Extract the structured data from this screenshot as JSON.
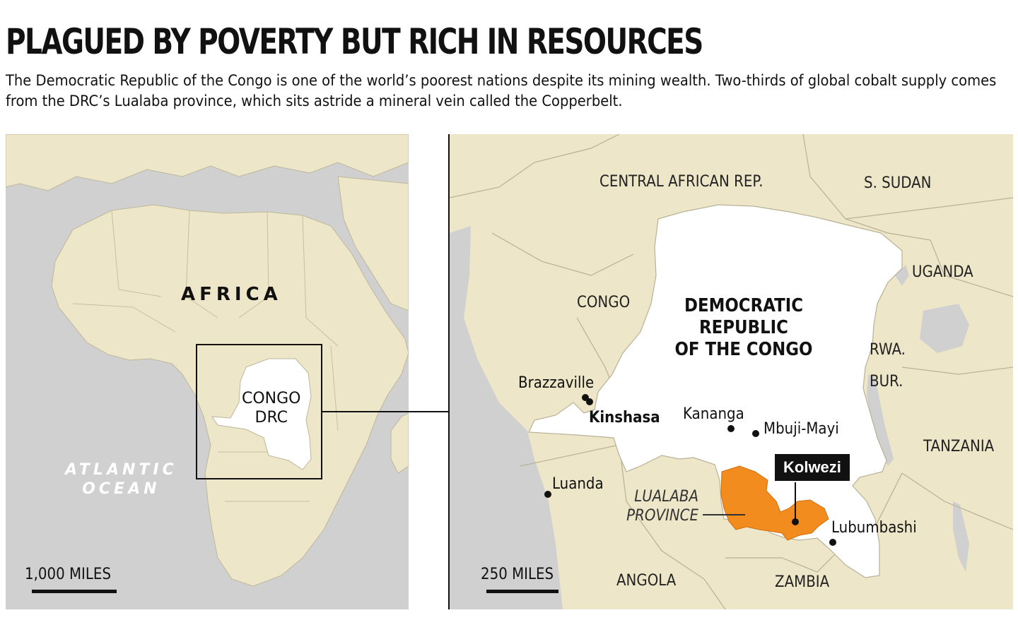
{
  "header": {
    "title": "PLAGUED BY POVERTY BUT RICH IN RESOURCES",
    "subtitle": "The Democratic Republic of the Congo is one of the world’s poorest nations despite its mining wealth. Two-thirds of global cobalt supply comes from the DRC’s Lualaba province, which sits astride a mineral vein called the Copperbelt."
  },
  "colors": {
    "land": "#ede6c8",
    "water": "#d0d0d0",
    "drc": "#ffffff",
    "lualaba": "#f28c1e",
    "ink": "#111111"
  },
  "left_map": {
    "continent_label": "AFRICA",
    "ocean_label_line1": "ATLANTIC",
    "ocean_label_line2": "OCEAN",
    "drc_label_line1": "CONGO",
    "drc_label_line2": "DRC",
    "scale_label": "1,000 MILES"
  },
  "right_map": {
    "countries": {
      "car": "CENTRAL AFRICAN REP.",
      "south_sudan": "S. SUDAN",
      "uganda": "UGANDA",
      "congo": "CONGO",
      "rwanda": "RWA.",
      "burundi": "BUR.",
      "tanzania": "TANZANIA",
      "angola": "ANGOLA",
      "zambia": "ZAMBIA"
    },
    "drc_label_line1": "DEMOCRATIC",
    "drc_label_line2": "REPUBLIC",
    "drc_label_line3": "OF THE CONGO",
    "cities": {
      "brazzaville": "Brazzaville",
      "kinshasa": "Kinshasa",
      "kananga": "Kananga",
      "mbuji_mayi": "Mbuji-Mayi",
      "luanda": "Luanda",
      "lubumbashi": "Lubumbashi"
    },
    "callout": "Kolwezi",
    "province_line1": "LUALABA",
    "province_line2": "PROVINCE",
    "scale_label": "250 MILES"
  }
}
